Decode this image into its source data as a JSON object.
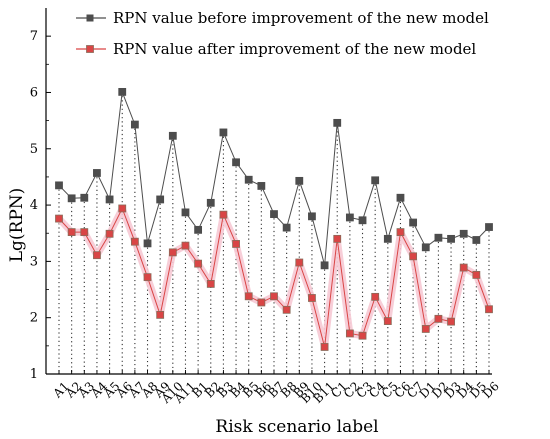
{
  "chart_data": {
    "type": "line",
    "title": "",
    "xlabel": "Risk scenario label",
    "ylabel": "Lg(RPN)",
    "ylim": [
      1,
      7.5
    ],
    "yticks": [
      1,
      2,
      3,
      4,
      5,
      6,
      7
    ],
    "grid": false,
    "legend_position": "top",
    "categories": [
      "A1",
      "A2",
      "A3",
      "A4",
      "A5",
      "A6",
      "A7",
      "A8",
      "A9",
      "A10",
      "A11",
      "B1",
      "B2",
      "B3",
      "B4",
      "B5",
      "B6",
      "B7",
      "B8",
      "B9",
      "B10",
      "B11",
      "C1",
      "C2",
      "C3",
      "C4",
      "C5",
      "C6",
      "C7",
      "D1",
      "D2",
      "D3",
      "D4",
      "D5",
      "D6"
    ],
    "series": [
      {
        "name": "RPN value before improvement of the new model",
        "color": "#4d4d4d",
        "marker": "square",
        "values": [
          4.35,
          4.12,
          4.13,
          4.57,
          4.1,
          6.01,
          5.43,
          3.32,
          4.1,
          5.23,
          3.87,
          3.56,
          4.04,
          5.29,
          4.76,
          4.45,
          4.34,
          3.84,
          3.6,
          4.43,
          3.8,
          2.93,
          5.46,
          3.78,
          3.73,
          4.44,
          3.4,
          4.13,
          3.69,
          3.25,
          3.42,
          3.4,
          3.49,
          3.38,
          3.61
        ]
      },
      {
        "name": "RPN value after improvement of the new model",
        "color": "#d94545",
        "marker": "square",
        "values": [
          3.76,
          3.52,
          3.52,
          3.11,
          3.49,
          3.94,
          3.35,
          2.72,
          2.05,
          3.16,
          3.28,
          2.96,
          2.6,
          3.83,
          3.31,
          2.38,
          2.27,
          2.38,
          2.14,
          2.98,
          2.35,
          1.48,
          3.4,
          1.72,
          1.68,
          2.37,
          1.94,
          3.52,
          3.09,
          1.8,
          1.98,
          1.93,
          2.89,
          2.76,
          2.15
        ]
      }
    ]
  }
}
